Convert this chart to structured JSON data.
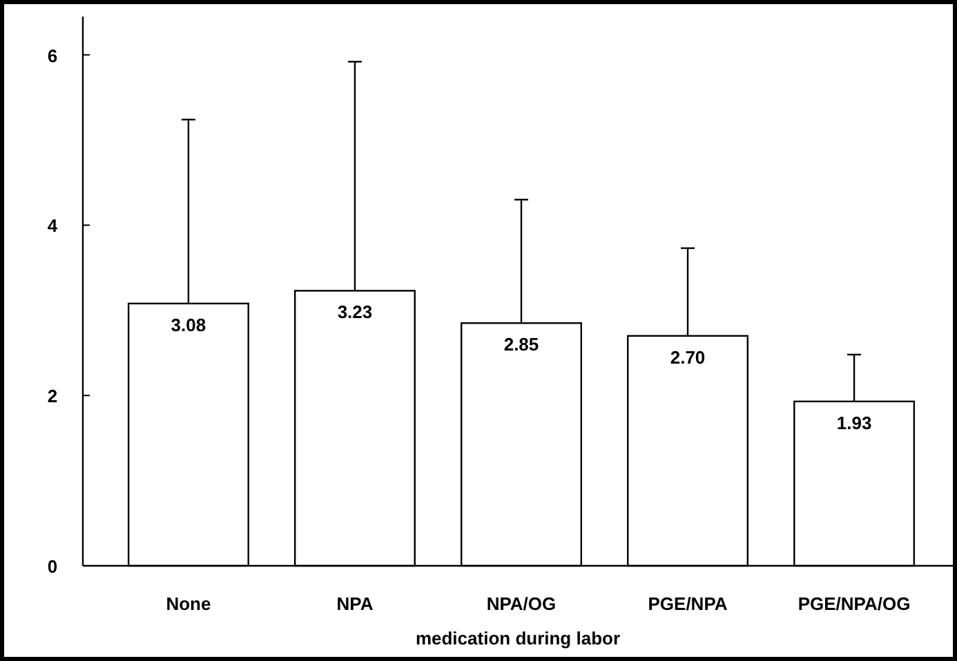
{
  "chart_data": {
    "type": "bar",
    "xlabel": "medication during labor",
    "categories": [
      "None",
      "NPA",
      "NPA/OG",
      "PGE/NPA",
      "PGE/NPA/OG"
    ],
    "values": [
      3.08,
      3.23,
      2.85,
      2.7,
      1.93
    ],
    "errors": [
      [
        3.08,
        5.24
      ],
      [
        3.23,
        5.92
      ],
      [
        2.85,
        4.3
      ],
      [
        2.7,
        3.73
      ],
      [
        1.93,
        2.48
      ]
    ],
    "color": "#ffffff",
    "data_labels": true,
    "value_labels": [
      "3.08",
      "3.23",
      "2.85",
      "2.70",
      "1.93"
    ],
    "ylim": [
      0,
      6.45
    ],
    "yticks": [
      0,
      2,
      4,
      6
    ],
    "grid": false
  }
}
